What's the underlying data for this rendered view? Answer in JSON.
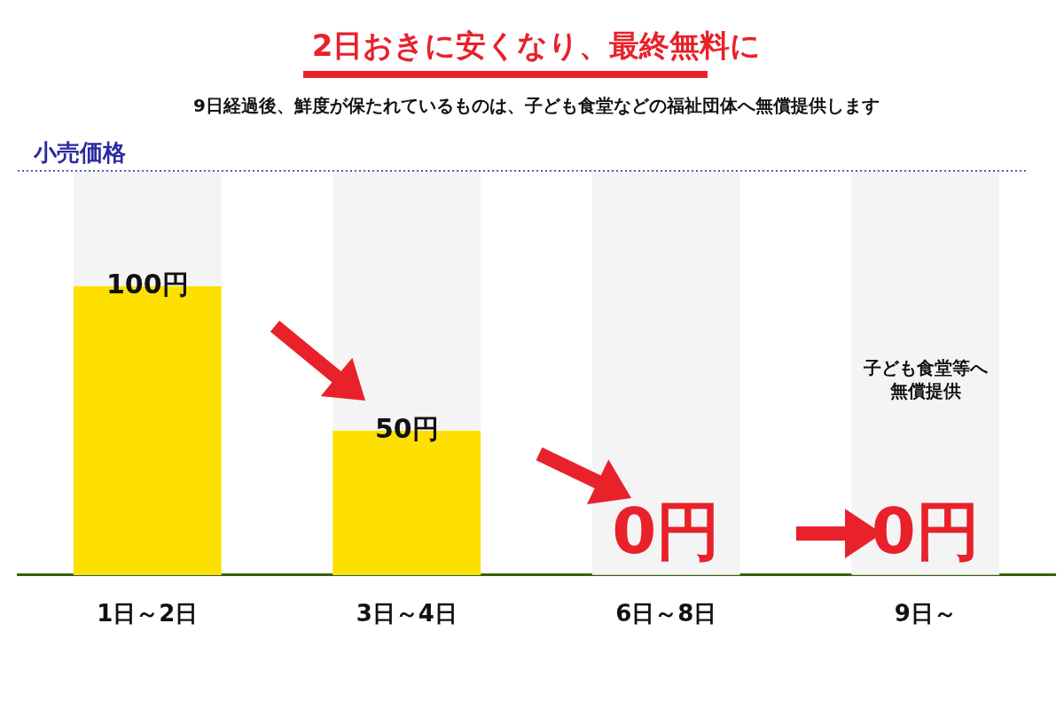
{
  "chart_data": {
    "type": "bar",
    "title": "2日おきに安くなり、最終無料に",
    "subtitle": "9日経過後、鮮度が保たれているものは、子ども食堂などの福祉団体へ無償提供します",
    "ylabel": "小売価格",
    "categories": [
      "1日～2日",
      "3日～4日",
      "6日～8日",
      "9日～"
    ],
    "values": [
      100,
      50,
      0,
      0
    ],
    "color": "#fde000",
    "value_labels": [
      "100円",
      "50円",
      "0円",
      "0円"
    ],
    "ylim": [
      0,
      140
    ],
    "tick_labels": "x",
    "grid": false,
    "legend": false,
    "bands": [
      {
        "axis": "x",
        "from": "1日～2日",
        "to": "1日～2日",
        "color": "#f4f4f4"
      },
      {
        "axis": "x",
        "from": "3日～4日",
        "to": "3日～4日",
        "color": "#f4f4f4"
      },
      {
        "axis": "x",
        "from": "6日～8日",
        "to": "6日～8日",
        "color": "#f4f4f4"
      },
      {
        "axis": "x",
        "from": "9日～",
        "to": "9日～",
        "color": "#f4f4f4"
      }
    ],
    "ref_lines": [
      {
        "axis": "y",
        "value": 140,
        "color": "#2a2aa0",
        "line_style": "dotted"
      }
    ],
    "annotations": [
      "子ども食堂等へ無償提供"
    ]
  }
}
